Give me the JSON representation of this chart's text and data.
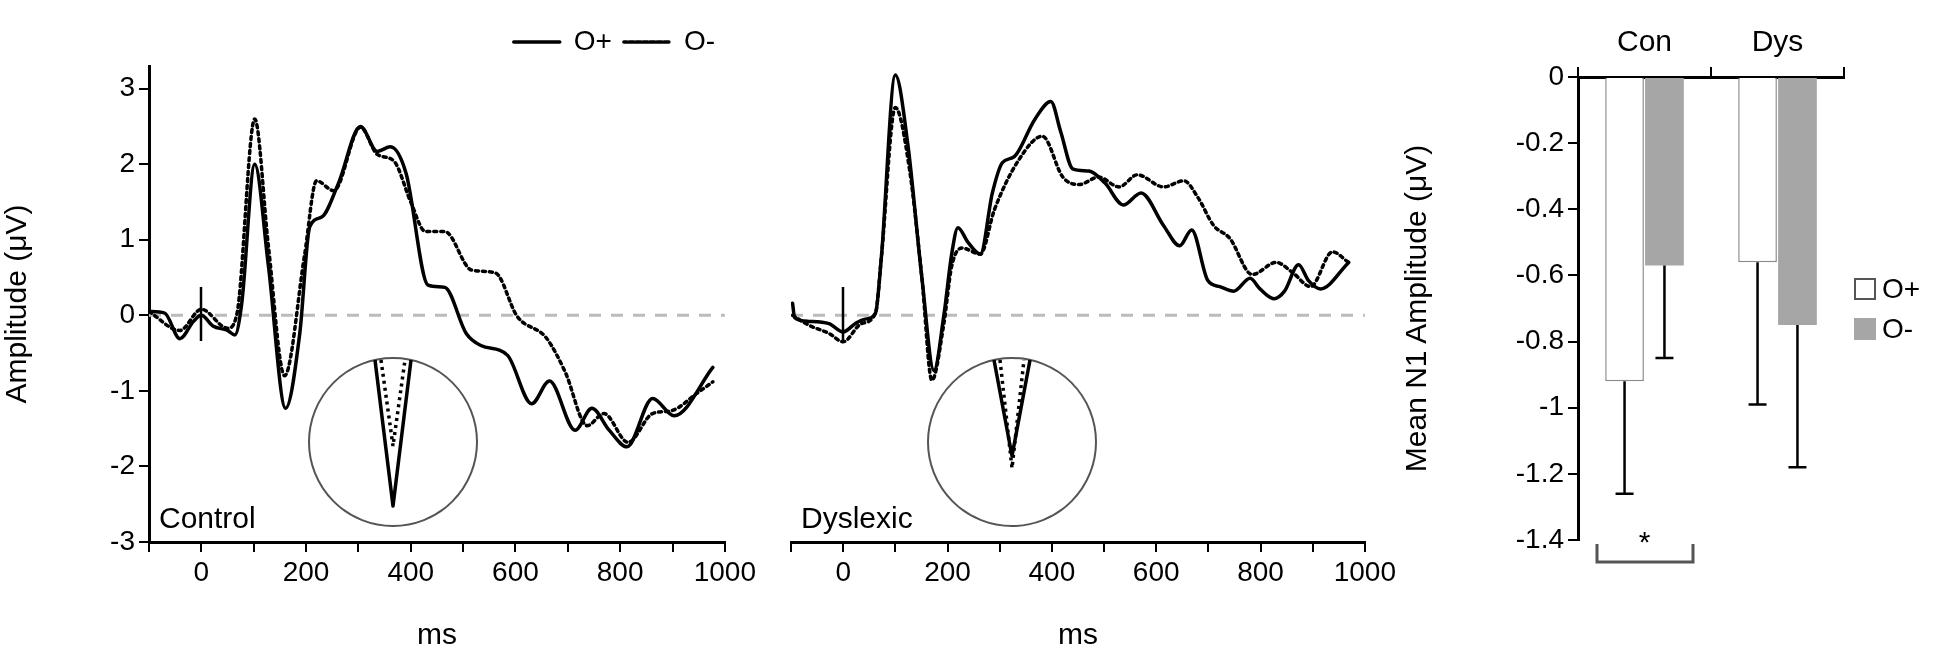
{
  "chart_data": [
    {
      "type": "line",
      "xlabel": "ms",
      "ylabel": "Amplitude (μV)",
      "xlim": [
        -100,
        1000
      ],
      "ylim": [
        -3,
        3.3
      ],
      "xticks": [
        {
          "value": -100,
          "label": null
        },
        0,
        {
          "value": 100,
          "label": null
        },
        200,
        {
          "value": 300,
          "label": null
        },
        400,
        {
          "value": 500,
          "label": null
        },
        600,
        {
          "value": 700,
          "label": null
        },
        800,
        {
          "value": 900,
          "label": null
        },
        1000
      ],
      "yticks": [
        -3,
        -2,
        -1,
        0,
        1,
        2,
        3
      ],
      "legend": "top right",
      "annotations": [
        "Control"
      ],
      "ref_lines": [
        {
          "axis": "y",
          "value": 0,
          "color": "#bbbbbb",
          "line_style": "dashed"
        }
      ],
      "series": [
        {
          "name": "O+",
          "color": "#000000",
          "line_style": "solid",
          "x": [
            -100,
            -70,
            -41,
            -15,
            0,
            22,
            50,
            64,
            77,
            102,
            128,
            161,
            188,
            207,
            230,
            262,
            304,
            336,
            361,
            391,
            433,
            465,
            506,
            534,
            585,
            631,
            665,
            714,
            746,
            779,
            813,
            862,
            903,
            977
          ],
          "values": [
            0.05,
            0.03,
            -0.31,
            -0.08,
            0,
            -0.14,
            -0.2,
            -0.26,
            0.15,
            2.0,
            0.66,
            -1.23,
            -0.24,
            1.17,
            1.3,
            1.75,
            2.5,
            2.17,
            2.23,
            1.88,
            0.4,
            0.37,
            -0.24,
            -0.4,
            -0.53,
            -1.17,
            -0.87,
            -1.52,
            -1.23,
            -1.52,
            -1.74,
            -1.1,
            -1.33,
            -0.69
          ]
        },
        {
          "name": "O-",
          "color": "#000000",
          "line_style": "dotted",
          "x": [
            -100,
            -41,
            0,
            50,
            68,
            102,
            128,
            159,
            197,
            220,
            253,
            304,
            336,
            368,
            400,
            428,
            465,
            516,
            562,
            603,
            659,
            695,
            737,
            769,
            815,
            862,
            899,
            945,
            977
          ],
          "values": [
            0.05,
            -0.2,
            0.08,
            -0.17,
            0.02,
            2.6,
            0.92,
            -0.8,
            0.79,
            1.78,
            1.65,
            2.49,
            2.13,
            2.04,
            1.5,
            1.11,
            1.11,
            0.6,
            0.56,
            -0.01,
            -0.3,
            -0.75,
            -1.46,
            -1.3,
            -1.68,
            -1.3,
            -1.26,
            -1.04,
            -0.88
          ]
        }
      ]
    },
    {
      "type": "line",
      "xlabel": "ms",
      "xlim": [
        -100,
        1000
      ],
      "xticks": [
        {
          "value": -100,
          "label": null
        },
        0,
        {
          "value": 100,
          "label": null
        },
        200,
        {
          "value": 300,
          "label": null
        },
        400,
        {
          "value": 500,
          "label": null
        },
        600,
        {
          "value": 700,
          "label": null
        },
        800,
        {
          "value": 900,
          "label": null
        },
        1000
      ],
      "yticks": [
        -3,
        -2,
        -1,
        0,
        1,
        2,
        3
      ],
      "tick_labels": "x",
      "annotations": [
        "Dyslexic"
      ],
      "ref_lines": [
        {
          "axis": "y",
          "value": 0,
          "color": "#bbbbbb",
          "line_style": "dashed"
        }
      ],
      "series": [
        {
          "color": "#000000",
          "line_style": "solid",
          "x": [
            -97,
            -93,
            -66,
            -27,
            0,
            23,
            42,
            62,
            73,
            100,
            124,
            151,
            174,
            193,
            208,
            220,
            239,
            263,
            286,
            305,
            328,
            367,
            398,
            417,
            440,
            471,
            502,
            537,
            571,
            614,
            645,
            668,
            699,
            722,
            749,
            780,
            799,
            826,
            846,
            873,
            892,
            915,
            969
          ],
          "values": [
            0.16,
            -0.03,
            -0.08,
            -0.11,
            -0.22,
            -0.11,
            -0.05,
            0.03,
            0.75,
            3.18,
            2.26,
            0.49,
            -0.73,
            0,
            0.81,
            1.16,
            0.97,
            0.81,
            1.62,
            2.02,
            2.1,
            2.59,
            2.83,
            2.43,
            1.94,
            1.91,
            1.75,
            1.46,
            1.62,
            1.19,
            0.92,
            1.13,
            0.46,
            0.38,
            0.32,
            0.49,
            0.35,
            0.22,
            0.32,
            0.67,
            0.46,
            0.35,
            0.7
          ]
        },
        {
          "color": "#000000",
          "line_style": "dotted",
          "x": [
            -97,
            -66,
            -27,
            0,
            35,
            62,
            73,
            100,
            127,
            151,
            170,
            193,
            208,
            228,
            263,
            290,
            336,
            382,
            421,
            452,
            490,
            529,
            564,
            614,
            653,
            680,
            710,
            741,
            784,
            830,
            861,
            896,
            938,
            969
          ],
          "values": [
            0,
            -0.13,
            -0.24,
            -0.35,
            -0.11,
            0.03,
            0.75,
            2.75,
            1.94,
            0.49,
            -0.86,
            -0.11,
            0.65,
            0.89,
            0.81,
            1.4,
            2.05,
            2.37,
            1.83,
            1.73,
            1.83,
            1.7,
            1.86,
            1.7,
            1.78,
            1.56,
            1.19,
            1.02,
            0.54,
            0.7,
            0.57,
            0.38,
            0.84,
            0.7
          ]
        }
      ]
    },
    {
      "type": "bar",
      "ylabel": "Mean N1 Amplitude (μV)",
      "categories": [
        "Con",
        "Dys"
      ],
      "ylim": [
        -1.4,
        0
      ],
      "yticks": [
        0,
        -0.2,
        -0.4,
        -0.6,
        -0.8,
        -1,
        -1.2,
        -1.4
      ],
      "legend": "right",
      "annotations": [
        "*"
      ],
      "series": [
        {
          "name": "O+",
          "color": "#ffffff",
          "values": [
            -0.92,
            -0.56
          ],
          "errors": [
            [
              -1.26,
              -0.92
            ],
            [
              -0.99,
              -0.56
            ]
          ]
        },
        {
          "name": "O-",
          "color": "#a6a6a6",
          "values": [
            -0.57,
            -0.75
          ],
          "errors": [
            [
              -0.85,
              -0.57
            ],
            [
              -1.18,
              -0.75
            ]
          ]
        }
      ]
    }
  ]
}
